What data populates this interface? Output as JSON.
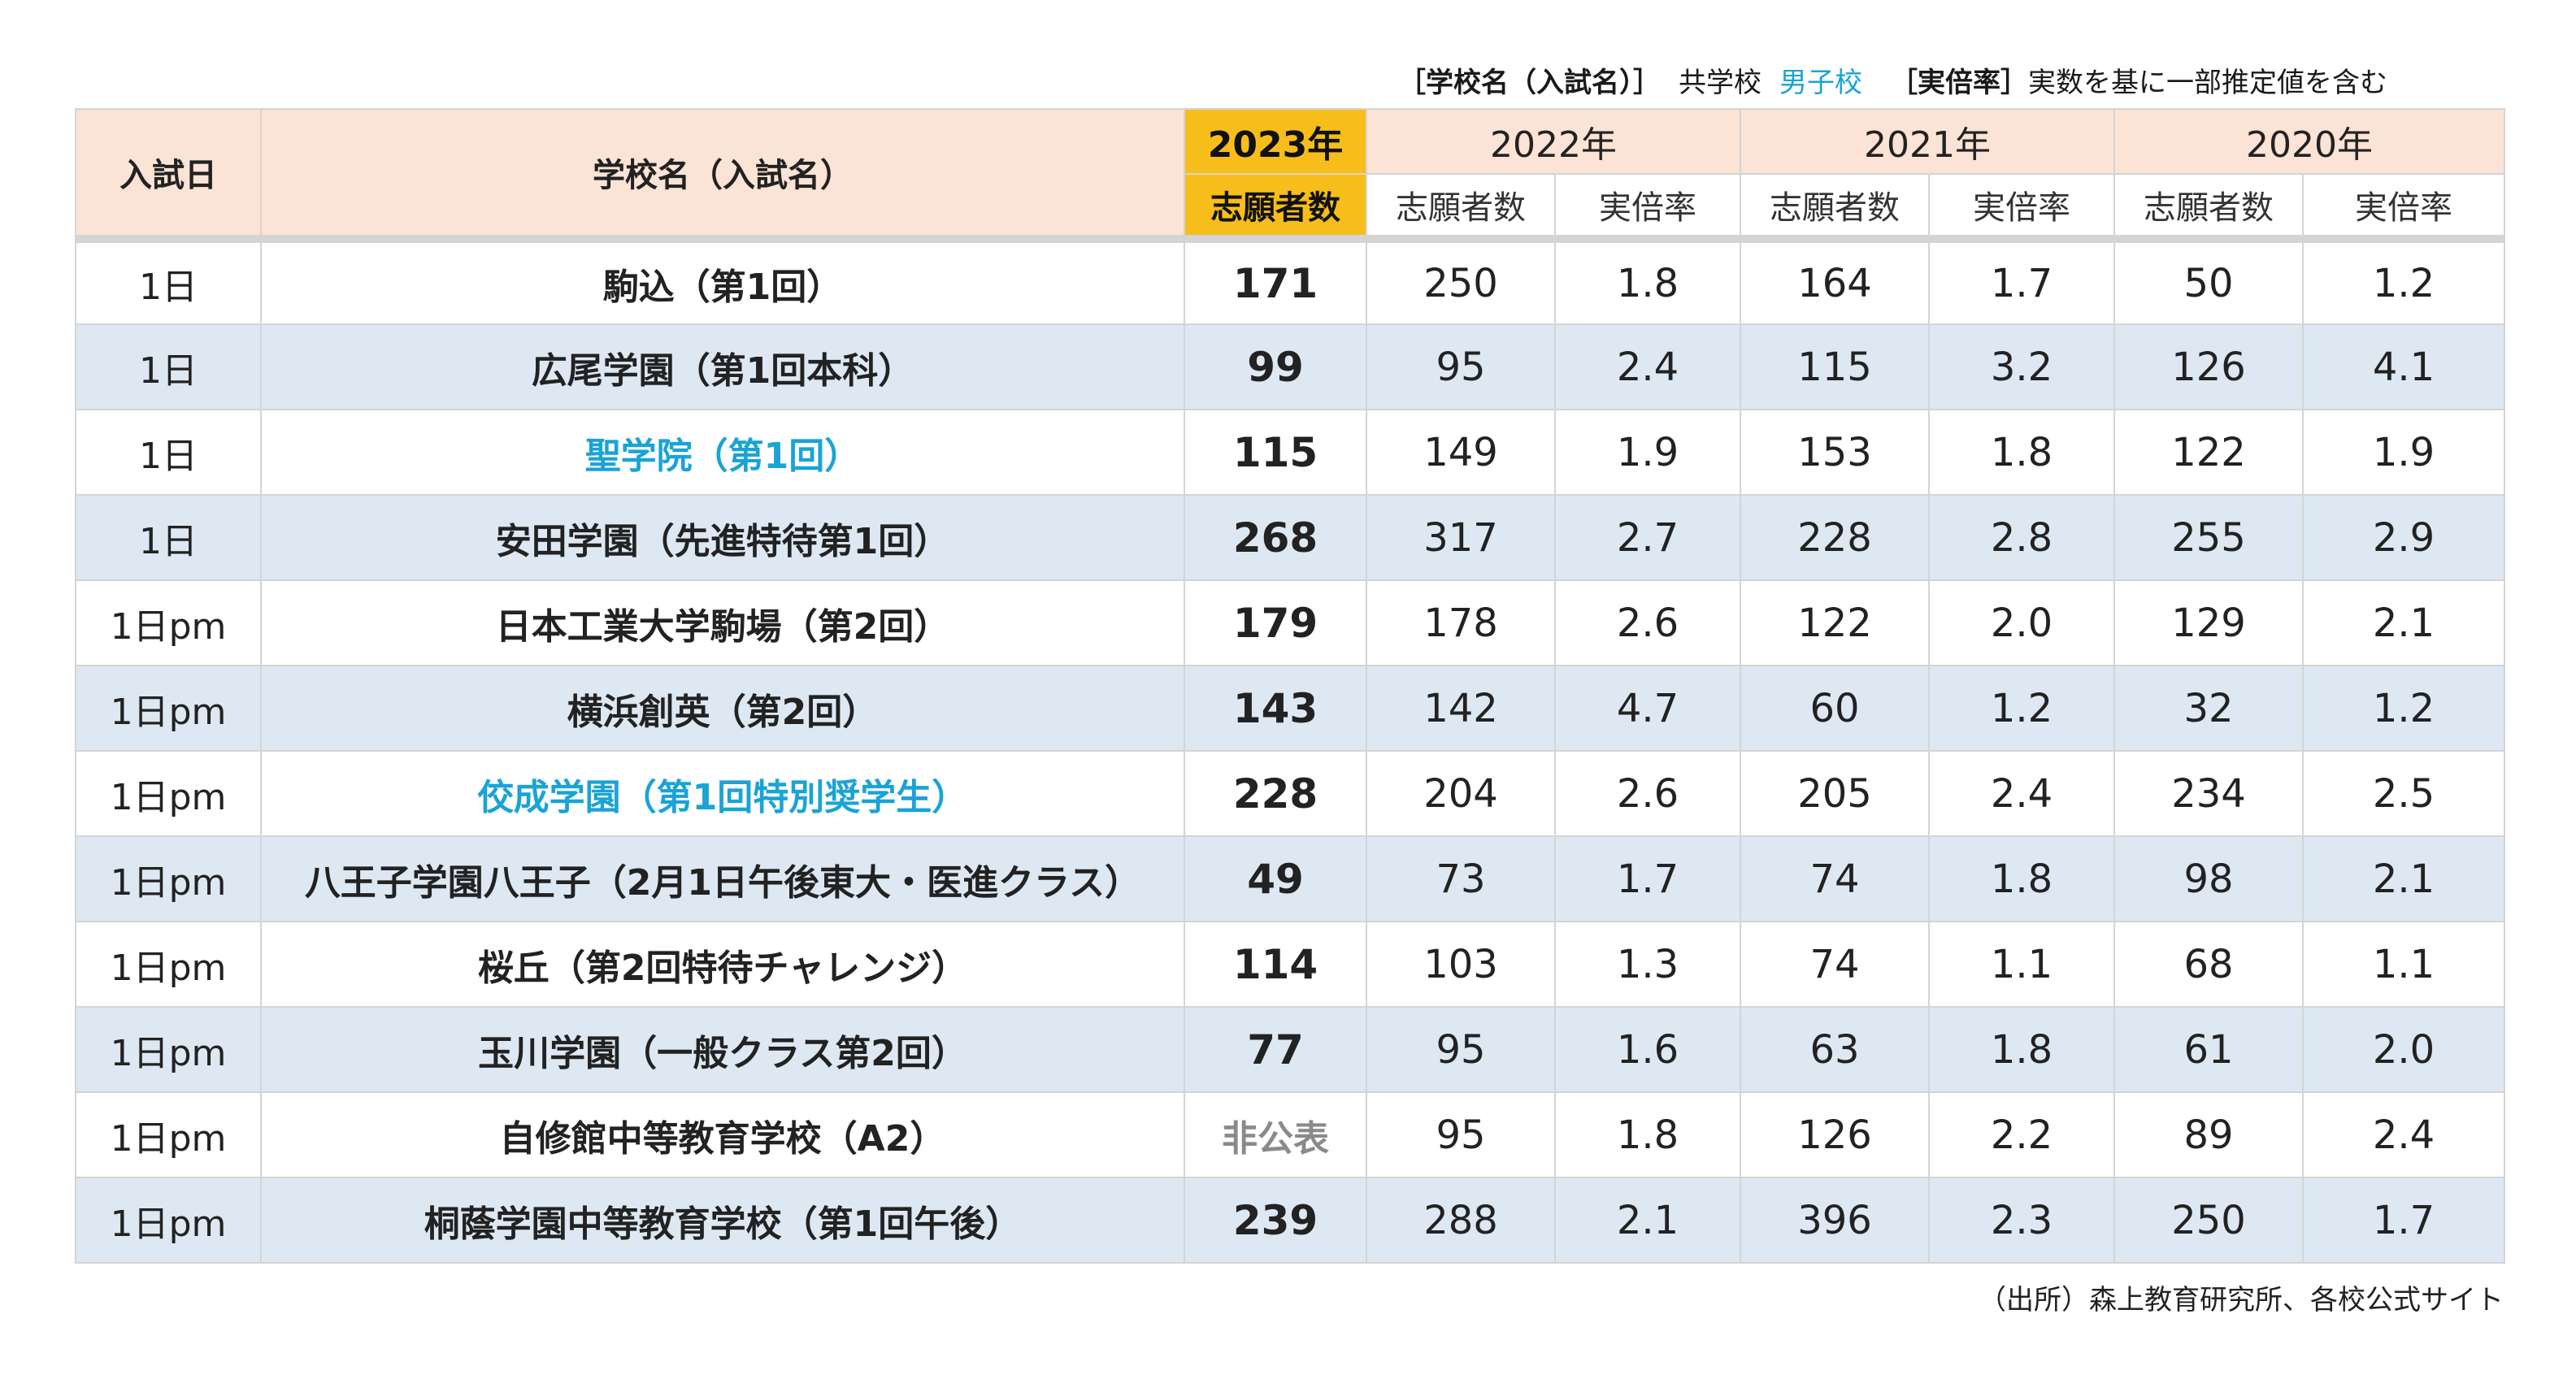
{
  "legend": {
    "school_name": "［学校名（入試名）］",
    "coed": "共学校",
    "boys": "男子校",
    "ratio_label": "［実倍率］",
    "ratio_note": "実数を基に一部推定値を含む"
  },
  "colors": {
    "boys_school_text": "#1aa3d6",
    "highlight_2023": "#f7bd1b",
    "header_bg": "#fbe3d6",
    "alt_row_bg": "#dde8f3"
  },
  "table": {
    "headers": {
      "date": "入試日",
      "school": "学校名（入試名）",
      "y2023": "2023年",
      "y2022": "2022年",
      "y2021": "2021年",
      "y2020": "2020年",
      "applicants_2023": "志願者数",
      "applicants": "志願者数",
      "ratio": "実倍率"
    },
    "rows": [
      {
        "date": "1日",
        "school": "駒込（第1回）",
        "type": "coed",
        "a2023": "171",
        "a2022": "250",
        "r2022": "1.8",
        "a2021": "164",
        "r2021": "1.7",
        "a2020": "50",
        "r2020": "1.2"
      },
      {
        "date": "1日",
        "school": "広尾学園（第1回本科）",
        "type": "coed",
        "a2023": "99",
        "a2022": "95",
        "r2022": "2.4",
        "a2021": "115",
        "r2021": "3.2",
        "a2020": "126",
        "r2020": "4.1"
      },
      {
        "date": "1日",
        "school": "聖学院（第1回）",
        "type": "boys",
        "a2023": "115",
        "a2022": "149",
        "r2022": "1.9",
        "a2021": "153",
        "r2021": "1.8",
        "a2020": "122",
        "r2020": "1.9"
      },
      {
        "date": "1日",
        "school": "安田学園（先進特待第1回）",
        "type": "coed",
        "a2023": "268",
        "a2022": "317",
        "r2022": "2.7",
        "a2021": "228",
        "r2021": "2.8",
        "a2020": "255",
        "r2020": "2.9"
      },
      {
        "date": "1日pm",
        "school": "日本工業大学駒場（第2回）",
        "type": "coed",
        "a2023": "179",
        "a2022": "178",
        "r2022": "2.6",
        "a2021": "122",
        "r2021": "2.0",
        "a2020": "129",
        "r2020": "2.1"
      },
      {
        "date": "1日pm",
        "school": "横浜創英（第2回）",
        "type": "coed",
        "a2023": "143",
        "a2022": "142",
        "r2022": "4.7",
        "a2021": "60",
        "r2021": "1.2",
        "a2020": "32",
        "r2020": "1.2"
      },
      {
        "date": "1日pm",
        "school": "佼成学園（第1回特別奨学生）",
        "type": "boys",
        "a2023": "228",
        "a2022": "204",
        "r2022": "2.6",
        "a2021": "205",
        "r2021": "2.4",
        "a2020": "234",
        "r2020": "2.5"
      },
      {
        "date": "1日pm",
        "school": "八王子学園八王子（2月1日午後東大・医進クラス）",
        "type": "coed",
        "a2023": "49",
        "a2022": "73",
        "r2022": "1.7",
        "a2021": "74",
        "r2021": "1.8",
        "a2020": "98",
        "r2020": "2.1"
      },
      {
        "date": "1日pm",
        "school": "桜丘（第2回特待チャレンジ）",
        "type": "coed",
        "a2023": "114",
        "a2022": "103",
        "r2022": "1.3",
        "a2021": "74",
        "r2021": "1.1",
        "a2020": "68",
        "r2020": "1.1"
      },
      {
        "date": "1日pm",
        "school": "玉川学園（一般クラス第2回）",
        "type": "coed",
        "a2023": "77",
        "a2022": "95",
        "r2022": "1.6",
        "a2021": "63",
        "r2021": "1.8",
        "a2020": "61",
        "r2020": "2.0"
      },
      {
        "date": "1日pm",
        "school": "自修館中等教育学校（A2）",
        "type": "coed",
        "a2023": "非公表",
        "a2022": "95",
        "r2022": "1.8",
        "a2021": "126",
        "r2021": "2.2",
        "a2020": "89",
        "r2020": "2.4"
      },
      {
        "date": "1日pm",
        "school": "桐蔭学園中等教育学校（第1回午後）",
        "type": "coed",
        "a2023": "239",
        "a2022": "288",
        "r2022": "2.1",
        "a2021": "396",
        "r2021": "2.3",
        "a2020": "250",
        "r2020": "1.7"
      }
    ]
  },
  "source": "（出所）森上教育研究所、各校公式サイト"
}
